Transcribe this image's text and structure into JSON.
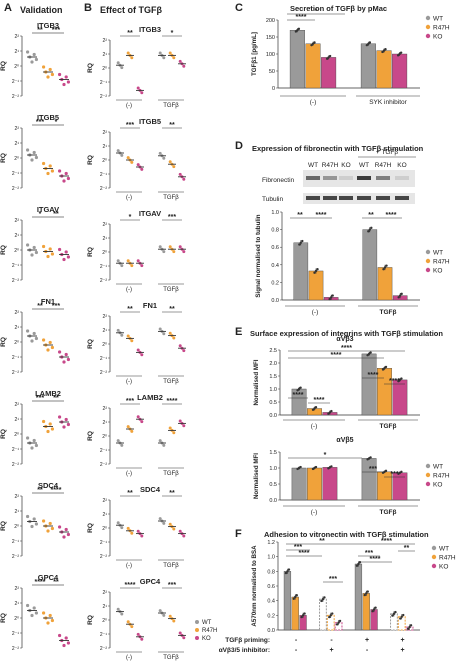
{
  "panels": {
    "A": {
      "letter": "A",
      "title": "Validation"
    },
    "B": {
      "letter": "B",
      "title": "Effect of TGFβ"
    },
    "C": {
      "letter": "C",
      "title": "Secretion of TGFβ by pMac",
      "ylabel": "TGFβ1 [pg/mL]",
      "yticks": [
        "0",
        "50",
        "100",
        "150",
        "200"
      ],
      "group1": "(-)",
      "group2": "SYK inhibitor"
    },
    "D": {
      "letter": "D",
      "title": "Expression of fibronectin with TGFβ stimulation",
      "blot_header": "+ TGFβ",
      "lanes": [
        "WT",
        "R47H",
        "KO",
        "WT",
        "R47H",
        "KO"
      ],
      "blot_rows": [
        "Fibronectin",
        "Tubulin"
      ],
      "ylabel": "Signal normalised to tubulin",
      "yticks": [
        "0.0",
        "0.2",
        "0.4",
        "0.6",
        "0.8",
        "1.0"
      ],
      "group1": "(-)",
      "group2": "TGFβ"
    },
    "E": {
      "letter": "E",
      "title": "Surface expression of integrins with TGFβ stimulation",
      "sub1": "αVβ3",
      "sub2": "αVβ5",
      "ylabel": "Normalised MFI",
      "yticks1": [
        "0.0",
        "0.5",
        "1.0",
        "1.5",
        "2.0",
        "2.5"
      ],
      "yticks2": [
        "0.0",
        "0.5",
        "1.0",
        "1.5"
      ],
      "group1": "(-)",
      "group2": "TGFβ"
    },
    "F": {
      "letter": "F",
      "title": "Adhesion to vitronectin with TGFβ stimulation",
      "ylabel": "A570nm normalised to BSA",
      "yticks": [
        "0.0",
        "0.2",
        "0.4",
        "0.6",
        "0.8",
        "1.0",
        "1.2"
      ],
      "row1_label": "TGFβ priming:",
      "row2_label": "αVβ3/5 inhibitor:",
      "row1": [
        "-",
        "-",
        "+",
        "+"
      ],
      "row2": [
        "-",
        "+",
        "-",
        "+"
      ]
    }
  },
  "genes": [
    "ITGB3",
    "ITGB5",
    "ITGAV",
    "FN1",
    "LAMB2",
    "SDC4",
    "GPC4"
  ],
  "rq_label": "RQ",
  "b_xgroups": [
    "(-)",
    "TGFβ"
  ],
  "legend": [
    "WT",
    "R47H",
    "KO"
  ],
  "sig": {
    "s1": "*",
    "s2": "**",
    "s3": "***",
    "s4": "****"
  },
  "colors": {
    "WT": "#9a9a9a",
    "R47H": "#f0a23a",
    "KO": "#c8488a",
    "bar_edge": "#555555"
  },
  "chart_data": [
    {
      "type": "bar",
      "title": "Secretion of TGFβ by pMac",
      "ylabel": "TGFβ1 [pg/mL]",
      "ylim": [
        0,
        200
      ],
      "categories": [
        "(-)",
        "SYK inhibitor"
      ],
      "series": [
        {
          "name": "WT",
          "values": [
            170,
            130
          ]
        },
        {
          "name": "R47H",
          "values": [
            130,
            110
          ]
        },
        {
          "name": "KO",
          "values": [
            90,
            100
          ]
        }
      ]
    },
    {
      "type": "bar",
      "title": "Expression of fibronectin with TGFβ stimulation",
      "ylabel": "Signal normalised to tubulin",
      "ylim": [
        0,
        1.0
      ],
      "categories": [
        "(-)",
        "TGFβ"
      ],
      "series": [
        {
          "name": "WT",
          "values": [
            0.65,
            0.8
          ]
        },
        {
          "name": "R47H",
          "values": [
            0.33,
            0.37
          ]
        },
        {
          "name": "KO",
          "values": [
            0.03,
            0.05
          ]
        }
      ]
    },
    {
      "type": "bar",
      "title": "αVβ3",
      "ylabel": "Normalised MFI",
      "ylim": [
        0,
        2.5
      ],
      "categories": [
        "(-)",
        "TGFβ"
      ],
      "series": [
        {
          "name": "WT",
          "values": [
            1.0,
            2.35
          ]
        },
        {
          "name": "R47H",
          "values": [
            0.25,
            1.8
          ]
        },
        {
          "name": "KO",
          "values": [
            0.1,
            1.35
          ]
        }
      ]
    },
    {
      "type": "bar",
      "title": "αVβ5",
      "ylabel": "Normalised MFI",
      "ylim": [
        0,
        1.5
      ],
      "categories": [
        "(-)",
        "TGFβ"
      ],
      "series": [
        {
          "name": "WT",
          "values": [
            1.0,
            1.3
          ]
        },
        {
          "name": "R47H",
          "values": [
            1.0,
            0.88
          ]
        },
        {
          "name": "KO",
          "values": [
            1.02,
            0.85
          ]
        }
      ]
    },
    {
      "type": "bar",
      "title": "Adhesion to vitronectin with TGFβ stimulation",
      "ylabel": "A570nm normalised to BSA",
      "ylim": [
        0,
        1.2
      ],
      "categories": [
        "-/-",
        "-/+",
        "+/-",
        "+/+"
      ],
      "series": [
        {
          "name": "WT",
          "values": [
            0.8,
            0.42,
            0.9,
            0.22
          ]
        },
        {
          "name": "R47H",
          "values": [
            0.45,
            0.2,
            0.5,
            0.18
          ]
        },
        {
          "name": "KO",
          "values": [
            0.2,
            0.1,
            0.28,
            0.04
          ]
        }
      ]
    }
  ]
}
